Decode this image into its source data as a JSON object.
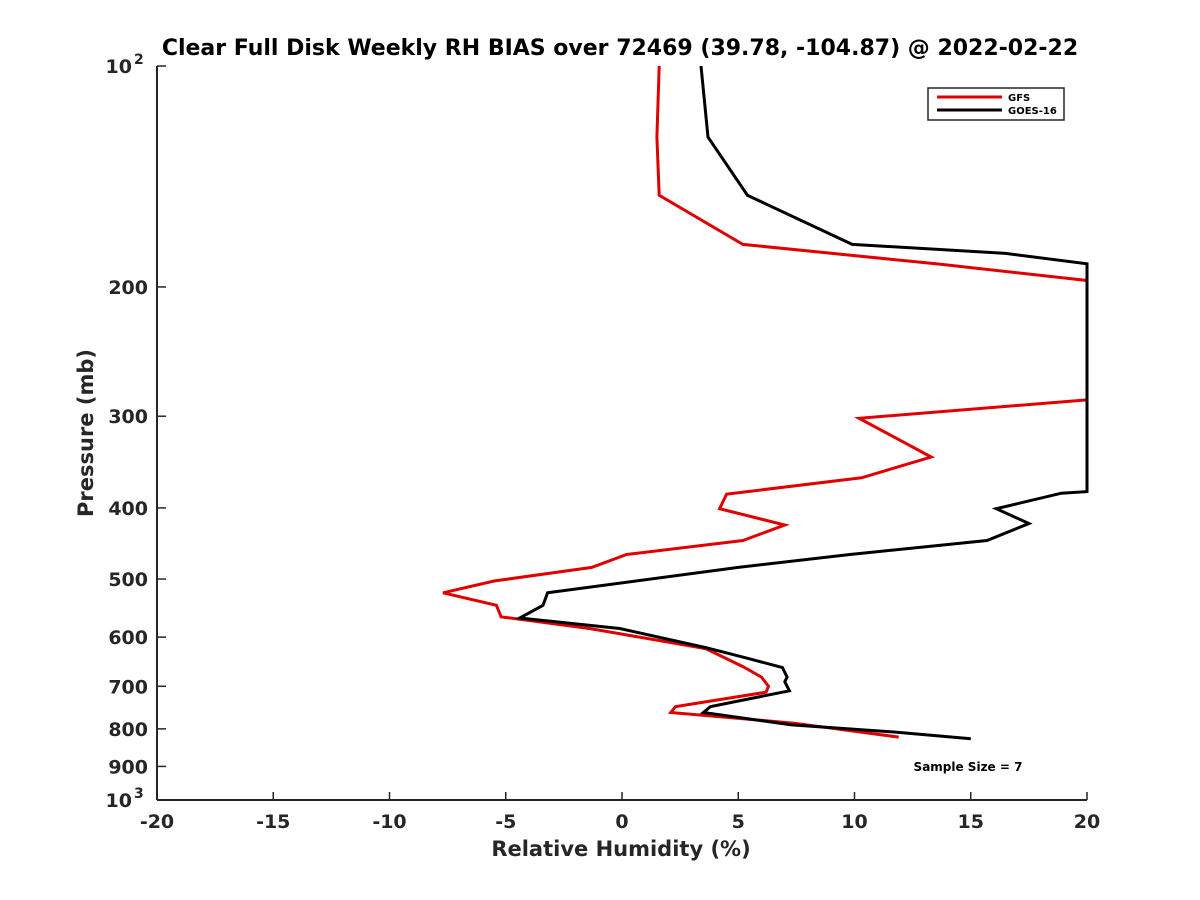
{
  "chart_data": {
    "type": "line",
    "title": "Clear Full Disk Weekly RH BIAS over 72469 (39.78, -104.87) @ 2022-02-22",
    "xlabel": "Relative Humidity (%)",
    "ylabel": "Pressure (mb)",
    "xlim": [
      -20,
      20
    ],
    "ylim": [
      100,
      1000
    ],
    "yscale": "log",
    "yreversed": true,
    "grid": false,
    "legend_position": "top-right",
    "x_ticks": [
      "-20",
      "-15",
      "-10",
      "-5",
      "0",
      "5",
      "10",
      "15",
      "20"
    ],
    "y_ticks": [
      {
        "value": 100,
        "base": "10",
        "exp": "2"
      },
      {
        "value": 200,
        "base": "200",
        "exp": ""
      },
      {
        "value": 300,
        "base": "300",
        "exp": ""
      },
      {
        "value": 400,
        "base": "400",
        "exp": ""
      },
      {
        "value": 500,
        "base": "500",
        "exp": ""
      },
      {
        "value": 600,
        "base": "600",
        "exp": ""
      },
      {
        "value": 700,
        "base": "700",
        "exp": ""
      },
      {
        "value": 800,
        "base": "800",
        "exp": ""
      },
      {
        "value": 900,
        "base": "900",
        "exp": ""
      },
      {
        "value": 1000,
        "base": "10",
        "exp": "3"
      }
    ],
    "series": [
      {
        "name": "GFS",
        "color": "#e00000",
        "points": [
          [
            1.6,
            100
          ],
          [
            1.5,
            125
          ],
          [
            1.6,
            150
          ],
          [
            5.2,
            175
          ],
          [
            13.5,
            186
          ],
          [
            20.0,
            196
          ],
          [
            20.0,
            285
          ],
          [
            10.2,
            302
          ],
          [
            13.3,
            341
          ],
          [
            10.3,
            364
          ],
          [
            4.5,
            383
          ],
          [
            4.2,
            401
          ],
          [
            7.0,
            422
          ],
          [
            5.2,
            443
          ],
          [
            0.2,
            463
          ],
          [
            -1.3,
            482
          ],
          [
            -5.5,
            503
          ],
          [
            -7.7,
            522
          ],
          [
            -5.4,
            543
          ],
          [
            -5.2,
            563
          ],
          [
            -4.8,
            565
          ],
          [
            -1.4,
            584
          ],
          [
            3.6,
            622
          ],
          [
            5.2,
            658
          ],
          [
            6.0,
            680
          ],
          [
            6.3,
            700
          ],
          [
            6.2,
            713
          ],
          [
            2.3,
            746
          ],
          [
            2.1,
            760
          ],
          [
            7.4,
            786
          ],
          [
            11.9,
            821
          ]
        ]
      },
      {
        "name": "GOES-16",
        "color": "#000000",
        "points": [
          [
            3.4,
            100
          ],
          [
            3.7,
            125
          ],
          [
            5.4,
            150
          ],
          [
            9.9,
            175
          ],
          [
            16.5,
            180
          ],
          [
            20.0,
            186
          ],
          [
            20.0,
            380
          ],
          [
            18.9,
            382
          ],
          [
            16.1,
            401
          ],
          [
            17.5,
            420
          ],
          [
            15.7,
            443
          ],
          [
            9.8,
            463
          ],
          [
            5.0,
            482
          ],
          [
            -3.2,
            522
          ],
          [
            -3.4,
            543
          ],
          [
            -4.4,
            565
          ],
          [
            -0.1,
            584
          ],
          [
            3.6,
            620
          ],
          [
            5.3,
            640
          ],
          [
            6.9,
            660
          ],
          [
            7.1,
            680
          ],
          [
            7.0,
            690
          ],
          [
            7.1,
            700
          ],
          [
            7.2,
            710
          ],
          [
            3.8,
            746
          ],
          [
            3.5,
            760
          ],
          [
            7.3,
            790
          ],
          [
            11.7,
            808
          ],
          [
            15.0,
            825
          ]
        ]
      }
    ],
    "annotations": [
      {
        "text": "Sample Size = 7",
        "x": 14.7,
        "y": 910
      }
    ]
  }
}
